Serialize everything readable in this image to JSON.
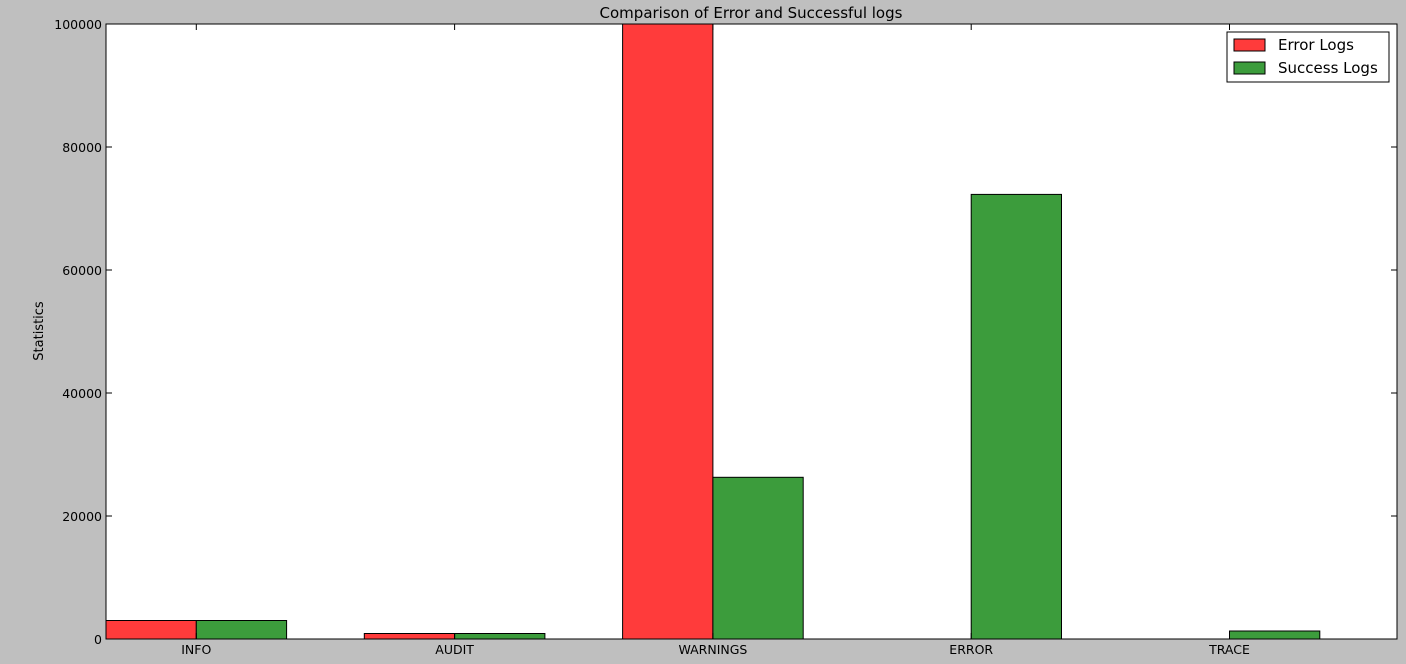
{
  "chart_data": {
    "type": "bar",
    "title": "Comparison of Error and Successful logs",
    "xlabel": "",
    "ylabel": "Statistics",
    "categories": [
      "INFO",
      "AUDIT",
      "WARNINGS",
      "ERROR",
      "TRACE"
    ],
    "series": [
      {
        "name": "Error Logs",
        "color": "#ff3b3b",
        "values": [
          3000,
          900,
          100000,
          0,
          0
        ]
      },
      {
        "name": "Success Logs",
        "color": "#3c9c3c",
        "values": [
          3000,
          900,
          26300,
          72300,
          1300
        ]
      }
    ],
    "ylim": [
      0,
      100000
    ],
    "yticks": [
      "0",
      "20000",
      "40000",
      "60000",
      "80000",
      "100000"
    ],
    "ytick_values": [
      0,
      20000,
      40000,
      60000,
      80000,
      100000
    ],
    "grid": false,
    "legend_position": "top-right",
    "background_color": "#bfbfbf",
    "plot_color": "#ffffff"
  }
}
